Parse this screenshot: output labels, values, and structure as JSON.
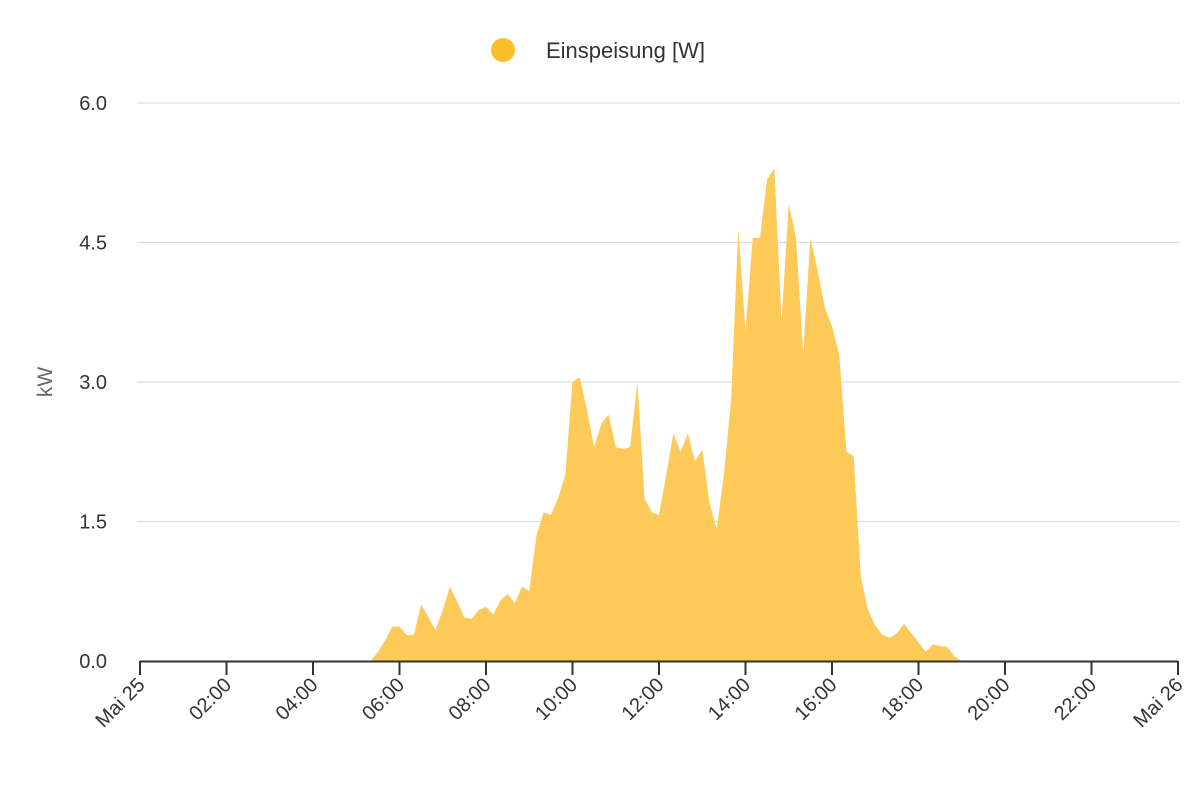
{
  "colors": {
    "series_fill": "#fdc959",
    "legend_dot": "#fbbf2a",
    "grid": "#dddddd",
    "axis": "#333333",
    "text": "#333333"
  },
  "chart_data": {
    "type": "area",
    "title": "",
    "xlabel": "",
    "ylabel": "kW",
    "ylim": [
      0,
      6
    ],
    "yticks": [
      "0.0",
      "1.5",
      "3.0",
      "4.5",
      "6.0"
    ],
    "x_range": [
      "Mai 25 00:00",
      "Mai 26 00:00"
    ],
    "xticks": [
      "Mai 25",
      "02:00",
      "04:00",
      "06:00",
      "08:00",
      "10:00",
      "12:00",
      "14:00",
      "16:00",
      "18:00",
      "20:00",
      "22:00",
      "Mai 26"
    ],
    "grid": true,
    "legend_position": "top-center",
    "series": [
      {
        "name": "Einspeisung [W]",
        "x": [
          "05:20",
          "05:30",
          "05:40",
          "05:50",
          "06:00",
          "06:10",
          "06:20",
          "06:30",
          "06:50",
          "07:00",
          "07:10",
          "07:30",
          "07:40",
          "07:50",
          "08:00",
          "08:10",
          "08:20",
          "08:30",
          "08:40",
          "08:50",
          "09:00",
          "09:10",
          "09:20",
          "09:30",
          "09:40",
          "09:50",
          "10:00",
          "10:10",
          "10:20",
          "10:30",
          "10:40",
          "10:50",
          "11:00",
          "11:10",
          "11:20",
          "11:30",
          "11:40",
          "11:50",
          "12:00",
          "12:10",
          "12:20",
          "12:30",
          "12:40",
          "12:50",
          "13:00",
          "13:10",
          "13:20",
          "13:30",
          "13:40",
          "13:50",
          "14:00",
          "14:10",
          "14:20",
          "14:30",
          "14:40",
          "14:50",
          "15:00",
          "15:10",
          "15:20",
          "15:30",
          "15:40",
          "15:50",
          "16:00",
          "16:10",
          "16:20",
          "16:30",
          "16:40",
          "16:50",
          "17:00",
          "17:10",
          "17:20",
          "17:30",
          "17:40",
          "17:50",
          "18:00",
          "18:10",
          "18:20",
          "18:30",
          "18:40",
          "18:50",
          "19:00",
          "19:10",
          "19:20"
        ],
        "y": [
          0.0,
          0.1,
          0.22,
          0.37,
          0.37,
          0.28,
          0.28,
          0.61,
          0.33,
          0.55,
          0.8,
          0.47,
          0.45,
          0.55,
          0.58,
          0.5,
          0.65,
          0.72,
          0.62,
          0.8,
          0.75,
          1.35,
          1.6,
          1.57,
          1.75,
          2.0,
          3.0,
          3.05,
          2.7,
          2.3,
          2.55,
          2.65,
          2.3,
          2.28,
          2.3,
          3.0,
          1.75,
          1.6,
          1.57,
          2.0,
          2.45,
          2.25,
          2.45,
          2.15,
          2.27,
          1.7,
          1.42,
          2.0,
          2.8,
          4.65,
          3.55,
          4.55,
          4.55,
          5.18,
          5.3,
          3.65,
          4.92,
          4.55,
          3.3,
          4.55,
          4.2,
          3.8,
          3.6,
          3.3,
          2.25,
          2.2,
          0.9,
          0.55,
          0.38,
          0.28,
          0.25,
          0.3,
          0.4,
          0.3,
          0.2,
          0.1,
          0.18,
          0.16,
          0.15,
          0.05,
          0.0,
          0.0,
          0.0
        ]
      }
    ]
  }
}
